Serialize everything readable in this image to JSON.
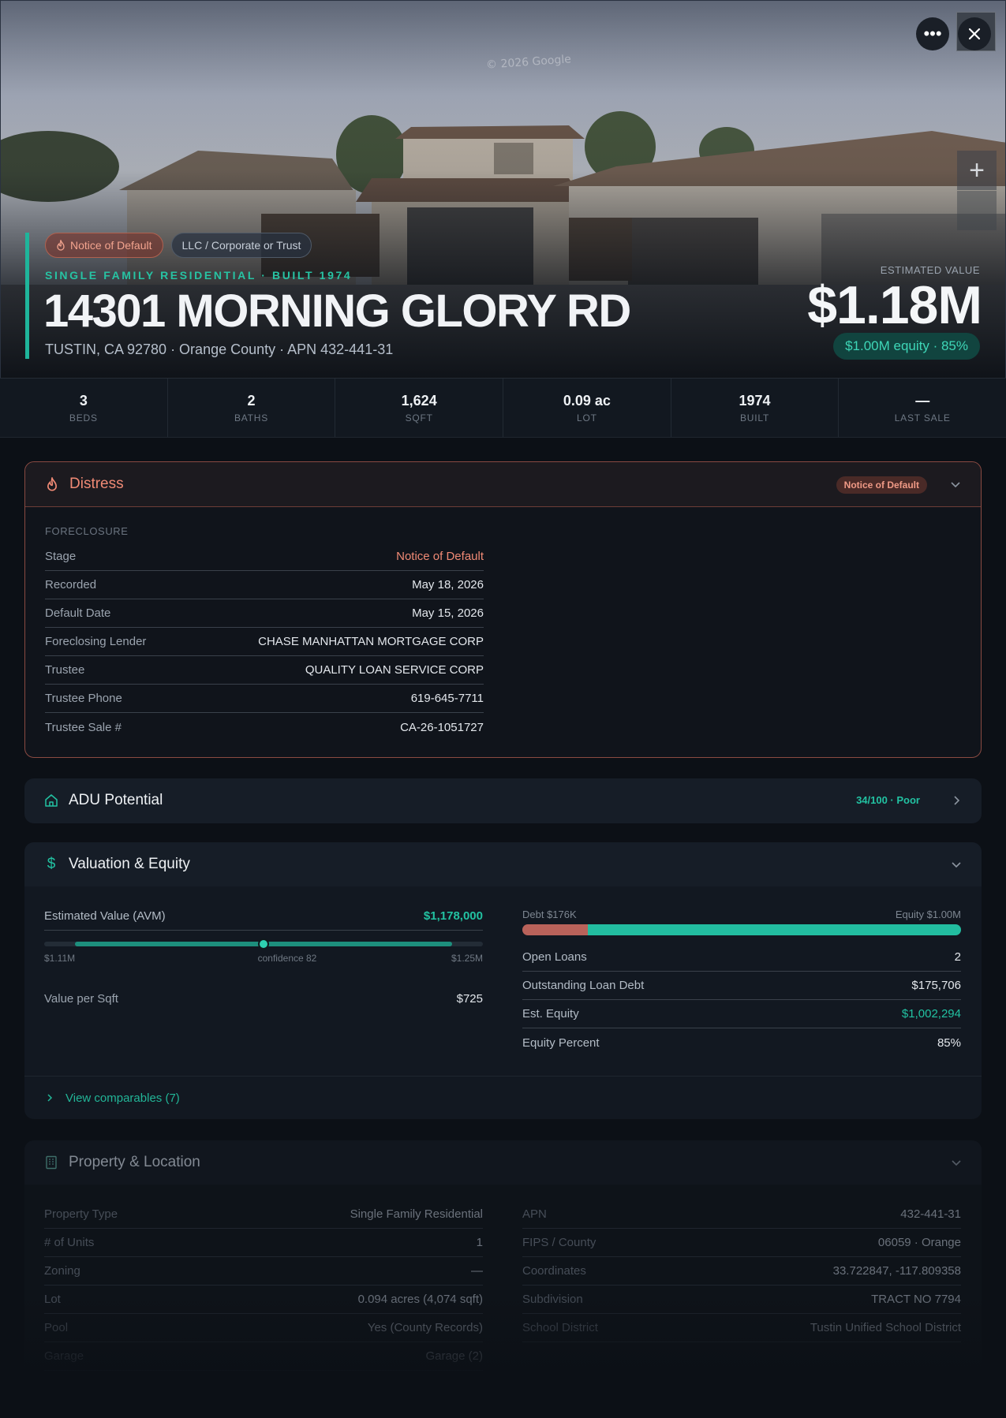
{
  "hero": {
    "watermark": "© 2026 Google",
    "chips": {
      "distress": "Notice of Default",
      "owner_type": "LLC / Corporate or Trust"
    },
    "subtitle": "SINGLE FAMILY RESIDENTIAL · BUILT 1974",
    "address": "14301 MORNING GLORY RD",
    "location": "TUSTIN, CA 92780 · Orange County · APN 432-441-31",
    "estimated_value_label": "ESTIMATED VALUE",
    "estimated_value": "$1.18M",
    "equity_pill": "$1.00M equity · 85%",
    "zoom_in_label": "+"
  },
  "stats": [
    {
      "value": "3",
      "label": "BEDS"
    },
    {
      "value": "2",
      "label": "BATHS"
    },
    {
      "value": "1,624",
      "label": "SQFT"
    },
    {
      "value": "0.09 ac",
      "label": "LOT"
    },
    {
      "value": "1974",
      "label": "BUILT"
    },
    {
      "value": "—",
      "label": "LAST SALE"
    }
  ],
  "distress": {
    "title": "Distress",
    "badge": "Notice of Default",
    "section_label": "FORECLOSURE",
    "rows": [
      {
        "k": "Stage",
        "v": "Notice of Default"
      },
      {
        "k": "Recorded",
        "v": "May 18, 2026"
      },
      {
        "k": "Default Date",
        "v": "May 15, 2026"
      },
      {
        "k": "Foreclosing Lender",
        "v": "CHASE MANHATTAN MORTGAGE CORP"
      },
      {
        "k": "Trustee",
        "v": "QUALITY LOAN SERVICE CORP"
      },
      {
        "k": "Trustee Phone",
        "v": "619-645-7711"
      },
      {
        "k": "Trustee Sale #",
        "v": "CA-26-1051727"
      }
    ]
  },
  "adu": {
    "title": "ADU Potential",
    "score": "34/100 · Poor"
  },
  "valuation": {
    "title": "Valuation & Equity",
    "avm_label": "Estimated Value (AVM)",
    "avm_value": "$1,178,000",
    "range_low": "$1.11M",
    "range_high": "$1.25M",
    "confidence": "confidence 82",
    "avm_position": 0.5,
    "value_per_sqft_label": "Value per Sqft",
    "value_per_sqft": "$725",
    "debt_label": "Debt $176K",
    "equity_label": "Equity $1.00M",
    "debt_fraction": 0.15,
    "rows": [
      {
        "k": "Open Loans",
        "v": "2"
      },
      {
        "k": "Outstanding Loan Debt",
        "v": "$175,706"
      },
      {
        "k": "Est. Equity",
        "v": "$1,002,294"
      },
      {
        "k": "Equity Percent",
        "v": "85%"
      }
    ],
    "comparables": "View comparables (7)"
  },
  "property": {
    "title": "Property & Location",
    "left": [
      {
        "k": "Property Type",
        "v": "Single Family Residential"
      },
      {
        "k": "# of Units",
        "v": "1"
      },
      {
        "k": "Zoning",
        "v": "—"
      },
      {
        "k": "Lot",
        "v": "0.094 acres (4,074 sqft)"
      },
      {
        "k": "Pool",
        "v": "Yes (County Records)"
      },
      {
        "k": "Garage",
        "v": "Garage (2)"
      }
    ],
    "right": [
      {
        "k": "APN",
        "v": "432-441-31"
      },
      {
        "k": "FIPS / County",
        "v": "06059 · Orange"
      },
      {
        "k": "Coordinates",
        "v": "33.722847, -117.809358"
      },
      {
        "k": "Subdivision",
        "v": "TRACT NO 7794"
      },
      {
        "k": "School District",
        "v": "Tustin Unified School District"
      }
    ]
  },
  "colors": {
    "accent": "#1fb59b",
    "distress": "#f08a75",
    "equity": "#22bda0",
    "debt": "#b9625a"
  }
}
